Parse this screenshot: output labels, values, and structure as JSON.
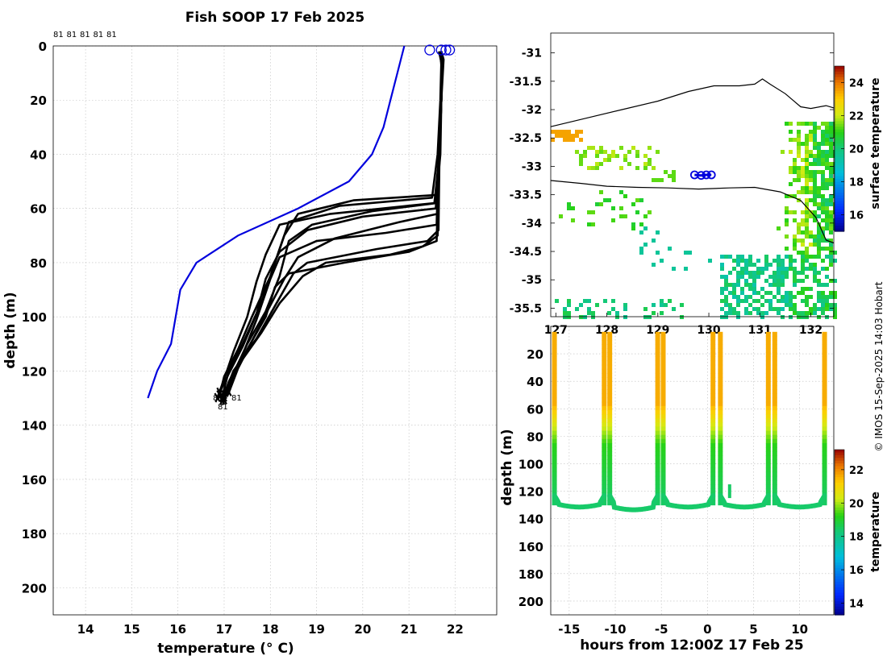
{
  "title": "Fish SOOP 17 Feb 2025",
  "copyright": "© IMOS 15-Sep-2025 14:03 Hobart",
  "chart_data": [
    {
      "type": "line",
      "panel": "profiles",
      "xlabel": "temperature (° C)",
      "ylabel": "depth (m)",
      "xlim": [
        13.3,
        22.9
      ],
      "ylim": [
        210,
        0
      ],
      "xticks": [
        14,
        15,
        16,
        17,
        18,
        19,
        20,
        21,
        22
      ],
      "yticks": [
        0,
        20,
        40,
        60,
        80,
        100,
        120,
        140,
        160,
        180,
        200
      ],
      "top_labels": [
        "81",
        "81",
        "81",
        "81",
        "81"
      ],
      "end_labels": [
        "81",
        "81",
        "81"
      ],
      "climatology": {
        "name": "climatology",
        "color": "#0000dd",
        "x": [
          20.9,
          20.75,
          20.6,
          20.45,
          20.2,
          19.7,
          18.6,
          17.3,
          16.4,
          16.05,
          15.85,
          15.55,
          15.35
        ],
        "y": [
          0,
          10,
          20,
          30,
          40,
          50,
          60,
          70,
          80,
          90,
          110,
          120,
          130
        ]
      },
      "profiles": [
        {
          "x": [
            21.7,
            21.75,
            21.7,
            21.68,
            21.6,
            19.8,
            18.6,
            18.3,
            18.1,
            17.8,
            17.4,
            17.1,
            16.95
          ],
          "y": [
            2,
            5,
            20,
            40,
            55,
            57,
            62,
            70,
            80,
            95,
            110,
            120,
            130
          ]
        },
        {
          "x": [
            21.65,
            21.7,
            21.68,
            21.62,
            21.5,
            19.5,
            18.4,
            18.2,
            18.0,
            17.6,
            17.3,
            17.0,
            16.9
          ],
          "y": [
            2,
            6,
            20,
            40,
            56,
            59,
            65,
            75,
            85,
            100,
            112,
            122,
            129
          ]
        },
        {
          "x": [
            21.7,
            21.72,
            21.7,
            21.65,
            21.6,
            20.2,
            18.9,
            18.4,
            18.2,
            17.9,
            17.5,
            17.2,
            17.0
          ],
          "y": [
            2,
            6,
            20,
            40,
            58,
            61,
            66,
            72,
            85,
            98,
            110,
            121,
            131
          ]
        },
        {
          "x": [
            21.72,
            21.7,
            21.7,
            21.66,
            21.55,
            19.3,
            18.2,
            17.9,
            17.7,
            17.5,
            17.2,
            17.0,
            16.85
          ],
          "y": [
            3,
            8,
            20,
            40,
            58,
            62,
            66,
            77,
            87,
            100,
            113,
            123,
            130
          ]
        },
        {
          "x": [
            21.68,
            21.7,
            21.7,
            21.65,
            21.62,
            20.8,
            19.4,
            18.6,
            18.3,
            17.9,
            17.6,
            17.3,
            17.1
          ],
          "y": [
            3,
            7,
            20,
            40,
            62,
            65,
            71,
            78,
            86,
            99,
            109,
            119,
            128
          ]
        },
        {
          "x": [
            21.7,
            21.72,
            21.7,
            21.64,
            21.6,
            20.5,
            19.0,
            18.2,
            18.0,
            17.7,
            17.4,
            17.1,
            16.95
          ],
          "y": [
            2,
            6,
            20,
            40,
            66,
            69,
            72,
            78,
            86,
            101,
            114,
            124,
            131
          ]
        },
        {
          "x": [
            21.72,
            21.7,
            21.7,
            21.66,
            21.64,
            21.4,
            20.3,
            18.8,
            18.5,
            18.1,
            17.7,
            17.2,
            17.0
          ],
          "y": [
            3,
            7,
            20,
            40,
            68,
            72,
            75,
            80,
            84,
            96,
            108,
            120,
            129
          ]
        },
        {
          "x": [
            21.7,
            21.72,
            21.7,
            21.66,
            21.62,
            21.3,
            20.6,
            19.2,
            18.7,
            18.2,
            17.8,
            17.3,
            17.05
          ],
          "y": [
            2,
            6,
            20,
            40,
            70,
            74,
            77,
            80,
            85,
            95,
            106,
            118,
            127
          ]
        },
        {
          "x": [
            21.68,
            21.7,
            21.7,
            21.65,
            21.6,
            21.0,
            19.6,
            18.4,
            18.1,
            17.9,
            17.5,
            17.2,
            17.0
          ],
          "y": [
            2,
            6,
            20,
            40,
            72,
            76,
            80,
            84,
            89,
            100,
            112,
            122,
            130
          ]
        },
        {
          "x": [
            21.7,
            21.72,
            21.7,
            21.66,
            21.58,
            20.0,
            18.8,
            18.2,
            17.9,
            17.7,
            17.4,
            17.1,
            16.9
          ],
          "y": [
            3,
            7,
            20,
            40,
            60,
            63,
            68,
            76,
            86,
            99,
            111,
            121,
            128
          ]
        }
      ]
    },
    {
      "type": "heatmap",
      "panel": "map",
      "title": "",
      "xlabel": "",
      "ylabel": "",
      "xlim": [
        126.9,
        132.45
      ],
      "ylim": [
        -35.65,
        -30.65
      ],
      "xticks": [
        127,
        128,
        129,
        130,
        131,
        132
      ],
      "xtick_labels": [
        "127",
        "128",
        "129",
        "130",
        "131",
        "132"
      ],
      "yticks": [
        -31,
        -31.5,
        -32,
        -32.5,
        -33,
        -33.5,
        -34,
        -34.5,
        -35,
        -35.5
      ],
      "colorbar": {
        "label": "surface temperature",
        "range": [
          15,
          25
        ],
        "ticks": [
          16,
          18,
          20,
          22,
          24
        ]
      },
      "coastline": {
        "lon": [
          126.9,
          127.6,
          128.3,
          129.0,
          129.6,
          130.1,
          130.6,
          130.9,
          131.05,
          131.2,
          131.5,
          131.8,
          132.0,
          132.3,
          132.45
        ],
        "lat": [
          -32.3,
          -32.15,
          -32.0,
          -31.85,
          -31.68,
          -31.58,
          -31.58,
          -31.55,
          -31.46,
          -31.55,
          -31.72,
          -31.95,
          -31.98,
          -31.93,
          -31.97
        ]
      },
      "shelf_edge": {
        "lon": [
          126.9,
          127.5,
          128.0,
          128.6,
          129.2,
          129.8,
          130.4,
          130.9,
          131.4,
          131.8,
          132.1,
          132.3,
          132.45
        ],
        "lat": [
          -33.25,
          -33.3,
          -33.35,
          -33.37,
          -33.38,
          -33.4,
          -33.38,
          -33.37,
          -33.45,
          -33.6,
          -33.9,
          -34.3,
          -34.35
        ]
      },
      "track": {
        "lon": [
          129.72,
          129.85,
          129.95,
          130.05
        ],
        "lat": [
          -33.15,
          -33.16,
          -33.15,
          -33.15
        ]
      }
    },
    {
      "type": "scatter",
      "panel": "section",
      "xlabel": "hours from 12:00Z 17 Feb 25",
      "ylabel": "depth (m)",
      "xlim": [
        -17,
        13.7
      ],
      "ylim": [
        210,
        0
      ],
      "xticks": [
        -15,
        -10,
        -5,
        0,
        5,
        10
      ],
      "yticks": [
        20,
        40,
        60,
        80,
        100,
        120,
        140,
        160,
        180,
        200
      ],
      "colorbar": {
        "label": "temperature",
        "range": [
          13.3,
          23.2
        ],
        "ticks": [
          14,
          16,
          18,
          20,
          22
        ]
      },
      "dive_hours": [
        -16.6,
        -11.2,
        -10.6,
        -5.4,
        -4.8,
        0.6,
        1.4,
        6.6,
        7.3,
        12.7
      ],
      "bottom_depth": [
        128,
        130,
        132,
        131,
        128,
        130,
        129,
        128
      ]
    }
  ]
}
